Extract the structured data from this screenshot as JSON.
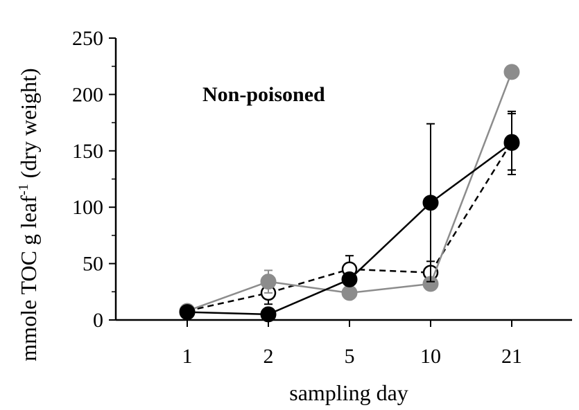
{
  "chart_data": {
    "type": "line",
    "annotation": "Non-poisoned",
    "xlabel": "sampling day",
    "ylabel": "mmole TOC g leaf",
    "ylabel_sup": "-1",
    "ylabel_suffix": " (dry weight)",
    "categories": [
      "1",
      "2",
      "5",
      "10",
      "21"
    ],
    "ylim": [
      0,
      250
    ],
    "yticks": [
      0,
      50,
      100,
      150,
      200,
      250
    ],
    "grid": false,
    "series": [
      {
        "values": [
          8,
          24,
          45,
          42,
          158
        ],
        "errors": [
          0,
          10,
          12,
          10,
          25
        ],
        "color": "#000000",
        "line_style": "dashed",
        "marker": "open-circle"
      },
      {
        "values": [
          8,
          34,
          24,
          32,
          220
        ],
        "errors": [
          0,
          10,
          0,
          0,
          0
        ],
        "color": "#8c8c8c",
        "line_style": "solid",
        "marker": "filled-circle"
      },
      {
        "values": [
          7,
          5,
          36,
          104,
          157
        ],
        "errors": [
          0,
          0,
          0,
          70,
          28
        ],
        "color": "#000000",
        "line_style": "solid",
        "marker": "filled-circle"
      }
    ]
  }
}
